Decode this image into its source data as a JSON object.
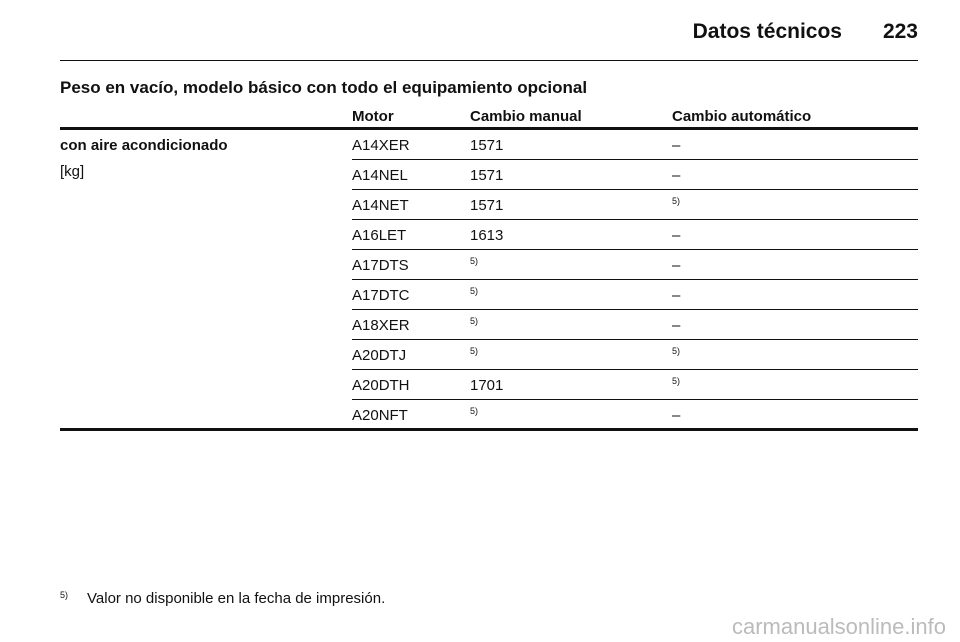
{
  "header": {
    "title": "Datos técnicos",
    "page": "223"
  },
  "section_title": "Peso en vacío, modelo básico con todo el equipamiento opcional",
  "table": {
    "columns": [
      "Motor",
      "Cambio manual",
      "Cambio automático"
    ],
    "row_label": "con aire acondicionado",
    "unit": "[kg]",
    "rows": [
      [
        "A14XER",
        "1571",
        "–"
      ],
      [
        "A14NEL",
        "1571",
        "–"
      ],
      [
        "A14NET",
        "1571",
        "5)"
      ],
      [
        "A16LET",
        "1613",
        "–"
      ],
      [
        "A17DTS",
        "5)",
        "–"
      ],
      [
        "A17DTC",
        "5)",
        "–"
      ],
      [
        "A18XER",
        "5)",
        "–"
      ],
      [
        "A20DTJ",
        "5)",
        "5)"
      ],
      [
        "A20DTH",
        "1701",
        "5)"
      ],
      [
        "A20NFT",
        "5)",
        "–"
      ]
    ]
  },
  "footnote": {
    "mark": "5)",
    "text": "Valor no disponible en la fecha de impresión."
  },
  "watermark": "carmanualsonline.info"
}
